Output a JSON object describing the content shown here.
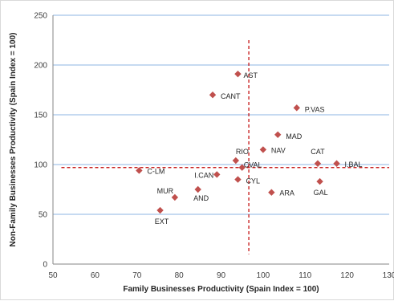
{
  "chart_data": {
    "type": "scatter",
    "title": "",
    "xlabel": "Family Businesses Productivity (Spain Index = 100)",
    "ylabel": "Non-Family Businesses Productivity (Spain Index = 100)",
    "xlim": [
      50,
      130
    ],
    "ylim": [
      0,
      250
    ],
    "x_ticks": [
      50,
      60,
      70,
      80,
      90,
      100,
      110,
      120,
      130
    ],
    "y_ticks": [
      0,
      50,
      100,
      150,
      200,
      250
    ],
    "grid": "horizontal",
    "legend": "none",
    "marker_color": "#c0504d",
    "gridline_color": "#8eb4e3",
    "reference_line_color": "#c00000",
    "reference_lines": {
      "x": 96.6,
      "y": 97
    },
    "points": [
      {
        "label": "AST",
        "x": 94,
        "y": 191
      },
      {
        "label": "CANT",
        "x": 88,
        "y": 170
      },
      {
        "label": "P.VAS",
        "x": 108,
        "y": 157
      },
      {
        "label": "MAD",
        "x": 103.5,
        "y": 130
      },
      {
        "label": "NAV",
        "x": 100,
        "y": 115
      },
      {
        "label": "CAT",
        "x": 113,
        "y": 101
      },
      {
        "label": "I.BAL",
        "x": 117.5,
        "y": 101
      },
      {
        "label": "RIO",
        "x": 93.5,
        "y": 104
      },
      {
        "label": "CVAL",
        "x": 95,
        "y": 97
      },
      {
        "label": "C-LM",
        "x": 70.5,
        "y": 94
      },
      {
        "label": "I.CAN",
        "x": 89,
        "y": 90
      },
      {
        "label": "CYL",
        "x": 94,
        "y": 85
      },
      {
        "label": "GAL",
        "x": 113.5,
        "y": 83
      },
      {
        "label": "ARA",
        "x": 102,
        "y": 72
      },
      {
        "label": "MUR",
        "x": 79,
        "y": 67
      },
      {
        "label": "AND",
        "x": 84.5,
        "y": 75
      },
      {
        "label": "EXT",
        "x": 75.5,
        "y": 54
      }
    ]
  }
}
